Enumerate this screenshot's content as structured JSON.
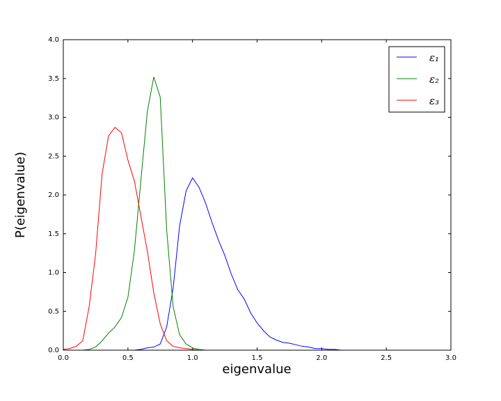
{
  "chart_data": {
    "type": "line",
    "xlabel": "eigenvalue",
    "ylabel": "P(eigenvalue)",
    "x": [
      0,
      0.05,
      0.1,
      0.15,
      0.2,
      0.25,
      0.3,
      0.35,
      0.4,
      0.45,
      0.5,
      0.55,
      0.6,
      0.65,
      0.7,
      0.75,
      0.8,
      0.85,
      0.9,
      0.95,
      1.0,
      1.05,
      1.1,
      1.15,
      1.2,
      1.25,
      1.3,
      1.35,
      1.4,
      1.45,
      1.5,
      1.55,
      1.6,
      1.65,
      1.7,
      1.75,
      1.8,
      1.85,
      1.9,
      1.95,
      2.0,
      2.05,
      2.1,
      2.15,
      2.2,
      2.25,
      2.3,
      2.35,
      2.4,
      2.45,
      2.5,
      2.55,
      2.6,
      2.65
    ],
    "series": [
      {
        "name": "ε₁",
        "color": "#0000ff",
        "values": [
          0,
          0,
          0,
          0,
          0,
          0,
          0,
          0,
          0,
          0,
          0,
          0,
          0.01,
          0.03,
          0.04,
          0.08,
          0.3,
          0.8,
          1.6,
          2.05,
          2.22,
          2.1,
          1.9,
          1.65,
          1.42,
          1.22,
          0.98,
          0.78,
          0.66,
          0.48,
          0.35,
          0.25,
          0.17,
          0.13,
          0.1,
          0.09,
          0.07,
          0.05,
          0.04,
          0.02,
          0.02,
          0.01,
          0.01,
          0,
          0,
          0,
          0,
          0,
          0,
          0,
          0,
          0,
          0,
          0
        ]
      },
      {
        "name": "ε₂",
        "color": "#008000",
        "values": [
          0,
          0,
          0,
          0,
          0.01,
          0.04,
          0.12,
          0.22,
          0.3,
          0.42,
          0.68,
          1.28,
          2.18,
          3.07,
          3.52,
          3.26,
          1.55,
          0.56,
          0.2,
          0.08,
          0.03,
          0.01,
          0,
          0,
          0,
          0,
          0,
          0,
          0,
          0,
          0,
          0,
          0,
          0,
          0,
          0,
          0,
          0,
          0,
          0,
          0,
          0,
          0,
          0,
          0,
          null,
          null,
          null,
          null,
          null,
          null,
          null,
          null,
          null
        ]
      },
      {
        "name": "ε₃",
        "color": "#ff0000",
        "values": [
          0.01,
          0.02,
          0.05,
          0.12,
          0.56,
          1.24,
          2.27,
          2.76,
          2.87,
          2.8,
          2.45,
          2.18,
          1.73,
          1.28,
          0.74,
          0.34,
          0.12,
          0.05,
          0.03,
          0.02,
          0.01,
          0,
          0,
          0,
          0,
          0,
          0,
          0,
          0,
          0,
          0,
          0,
          0,
          0,
          0,
          0,
          0,
          0,
          0,
          0,
          0,
          0,
          0,
          0,
          0,
          null,
          null,
          null,
          null,
          null,
          null,
          null,
          null,
          null
        ]
      }
    ],
    "xlim": [
      0,
      3
    ],
    "ylim": [
      0,
      4
    ],
    "xticks": [
      {
        "value": 0,
        "label": "0.0"
      },
      {
        "value": 0.5,
        "label": "0.5"
      },
      {
        "value": 1,
        "label": "1.0"
      },
      {
        "value": 1.5,
        "label": "1.5"
      },
      {
        "value": 2,
        "label": "2.0"
      },
      {
        "value": 2.5,
        "label": "2.5"
      },
      {
        "value": 3,
        "label": "3.0"
      }
    ],
    "yticks": [
      {
        "value": 0,
        "label": "0.0"
      },
      {
        "value": 0.5,
        "label": "0.5"
      },
      {
        "value": 1,
        "label": "1.0"
      },
      {
        "value": 1.5,
        "label": "1.5"
      },
      {
        "value": 2,
        "label": "2.0"
      },
      {
        "value": 2.5,
        "label": "2.5"
      },
      {
        "value": 3,
        "label": "3.0"
      },
      {
        "value": 3.5,
        "label": "3.5"
      },
      {
        "value": 4,
        "label": "4.0"
      }
    ],
    "grid": false,
    "legend": "upper right"
  }
}
